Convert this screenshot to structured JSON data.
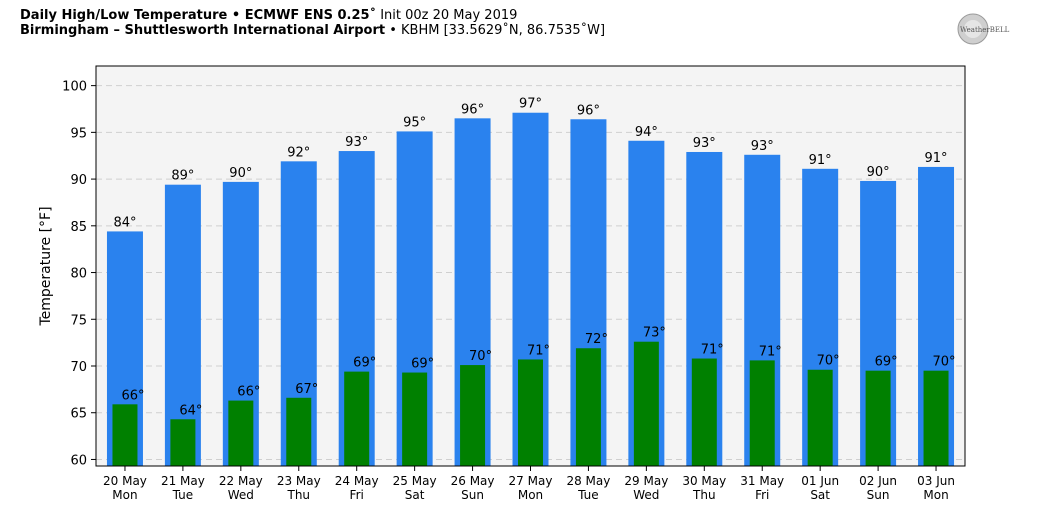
{
  "header": {
    "line1_bold": "Daily High/Low Temperature • ECMWF ENS 0.25˚",
    "line1_rest": " Init 00z 20 May 2019",
    "line2_bold": "Birmingham – Shuttlesworth International Airport",
    "line2_rest": " • KBHM [33.5629˚N, 86.7535˚W]"
  },
  "logo": {
    "text": "WeatherBELL"
  },
  "chart_data": {
    "type": "bar",
    "ylabel": "Temperature [°F]",
    "ylim": [
      59.3,
      102.1
    ],
    "yticks": [
      60,
      65,
      70,
      75,
      80,
      85,
      90,
      95,
      100
    ],
    "ytick_labels": [
      "60",
      "65",
      "70",
      "75",
      "80",
      "85",
      "90",
      "95",
      "100"
    ],
    "grid": true,
    "categories": [
      [
        "20 May",
        "Mon"
      ],
      [
        "21 May",
        "Tue"
      ],
      [
        "22 May",
        "Wed"
      ],
      [
        "23 May",
        "Thu"
      ],
      [
        "24 May",
        "Fri"
      ],
      [
        "25 May",
        "Sat"
      ],
      [
        "26 May",
        "Sun"
      ],
      [
        "27 May",
        "Mon"
      ],
      [
        "28 May",
        "Tue"
      ],
      [
        "29 May",
        "Wed"
      ],
      [
        "30 May",
        "Thu"
      ],
      [
        "31 May",
        "Fri"
      ],
      [
        "01 Jun",
        "Sat"
      ],
      [
        "02 Jun",
        "Sun"
      ],
      [
        "03 Jun",
        "Mon"
      ]
    ],
    "series": [
      {
        "values": [
          84.4,
          89.4,
          89.7,
          91.9,
          93.0,
          95.1,
          96.5,
          97.1,
          96.4,
          94.1,
          92.9,
          92.6,
          91.1,
          89.8,
          91.3
        ],
        "labels": [
          "84°",
          "89°",
          "90°",
          "92°",
          "93°",
          "95°",
          "96°",
          "97°",
          "96°",
          "94°",
          "93°",
          "93°",
          "91°",
          "90°",
          "91°"
        ],
        "color": "#2a82ee"
      },
      {
        "values": [
          65.9,
          64.3,
          66.3,
          66.6,
          69.4,
          69.3,
          70.1,
          70.7,
          71.9,
          72.6,
          70.8,
          70.6,
          69.6,
          69.5,
          69.5
        ],
        "labels": [
          "66°",
          "64°",
          "66°",
          "67°",
          "69°",
          "69°",
          "70°",
          "71°",
          "72°",
          "73°",
          "71°",
          "71°",
          "70°",
          "69°",
          "70°"
        ],
        "color": "#008000"
      }
    ]
  }
}
